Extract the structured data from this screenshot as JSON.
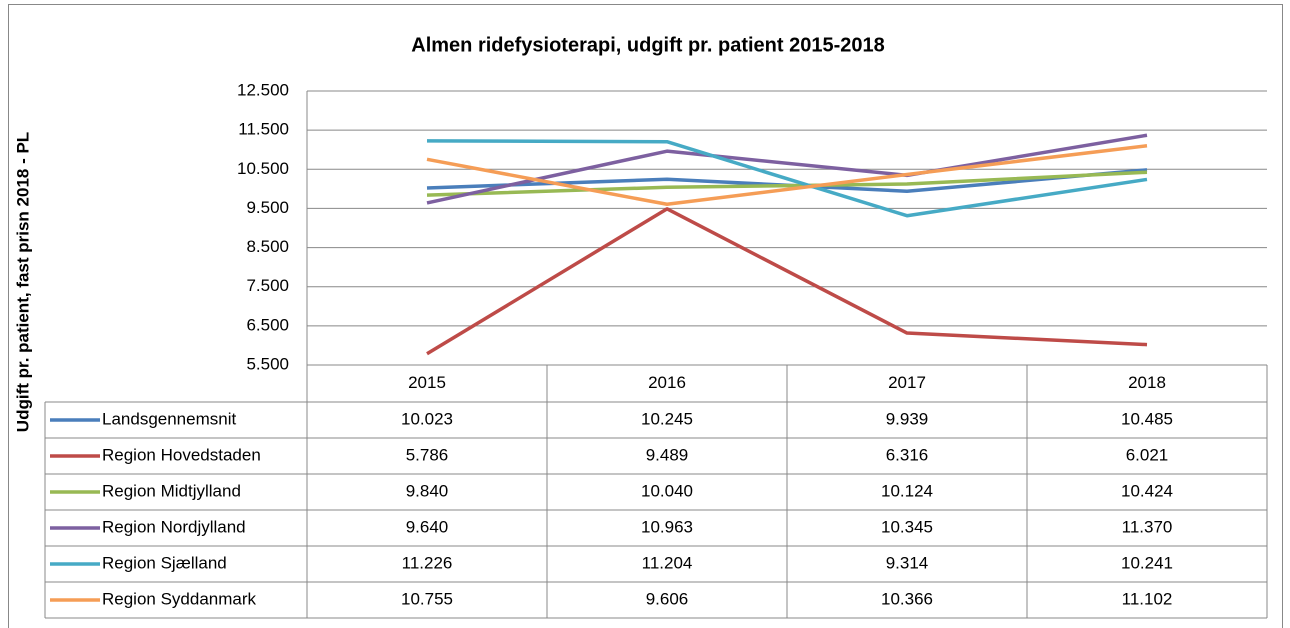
{
  "chart_data": {
    "type": "line",
    "title": "Almen ridefysioterapi, udgift pr. patient 2015-2018",
    "y_label": "Udgift pr. patient,  fast prisn 2018 - PL",
    "categories": [
      "2015",
      "2016",
      "2017",
      "2018"
    ],
    "ylim": [
      5500,
      12500
    ],
    "yticks": [
      {
        "value": 5500,
        "label": "5.500"
      },
      {
        "value": 6500,
        "label": "6.500"
      },
      {
        "value": 7500,
        "label": "7.500"
      },
      {
        "value": 8500,
        "label": "8.500"
      },
      {
        "value": 9500,
        "label": "9.500"
      },
      {
        "value": 10500,
        "label": "10.500"
      },
      {
        "value": 11500,
        "label": "11.500"
      },
      {
        "value": 12500,
        "label": "12.500"
      }
    ],
    "grid": true,
    "series": [
      {
        "name": "Landsgennemsnit",
        "color": "#4a7ebb",
        "values": [
          10023,
          10245,
          9939,
          10485
        ],
        "value_labels": [
          "10.023",
          "10.245",
          "9.939",
          "10.485"
        ]
      },
      {
        "name": "Region Hovedstaden",
        "color": "#be4b48",
        "values": [
          5786,
          9489,
          6316,
          6021
        ],
        "value_labels": [
          "5.786",
          "9.489",
          "6.316",
          "6.021"
        ]
      },
      {
        "name": "Region Midtjylland",
        "color": "#98b954",
        "values": [
          9840,
          10040,
          10124,
          10424
        ],
        "value_labels": [
          "9.840",
          "10.040",
          "10.124",
          "10.424"
        ]
      },
      {
        "name": "Region Nordjylland",
        "color": "#7d60a0",
        "values": [
          9640,
          10963,
          10345,
          11370
        ],
        "value_labels": [
          "9.640",
          "10.963",
          "10.345",
          "11.370"
        ]
      },
      {
        "name": "Region Sjælland",
        "color": "#46aac5",
        "values": [
          11226,
          11204,
          9314,
          10241
        ],
        "value_labels": [
          "11.226",
          "11.204",
          "9.314",
          "10.241"
        ]
      },
      {
        "name": "Region Syddanmark",
        "color": "#f59d56",
        "values": [
          10755,
          9606,
          10366,
          11102
        ],
        "value_labels": [
          "10.755",
          "9.606",
          "10.366",
          "11.102"
        ]
      }
    ]
  }
}
